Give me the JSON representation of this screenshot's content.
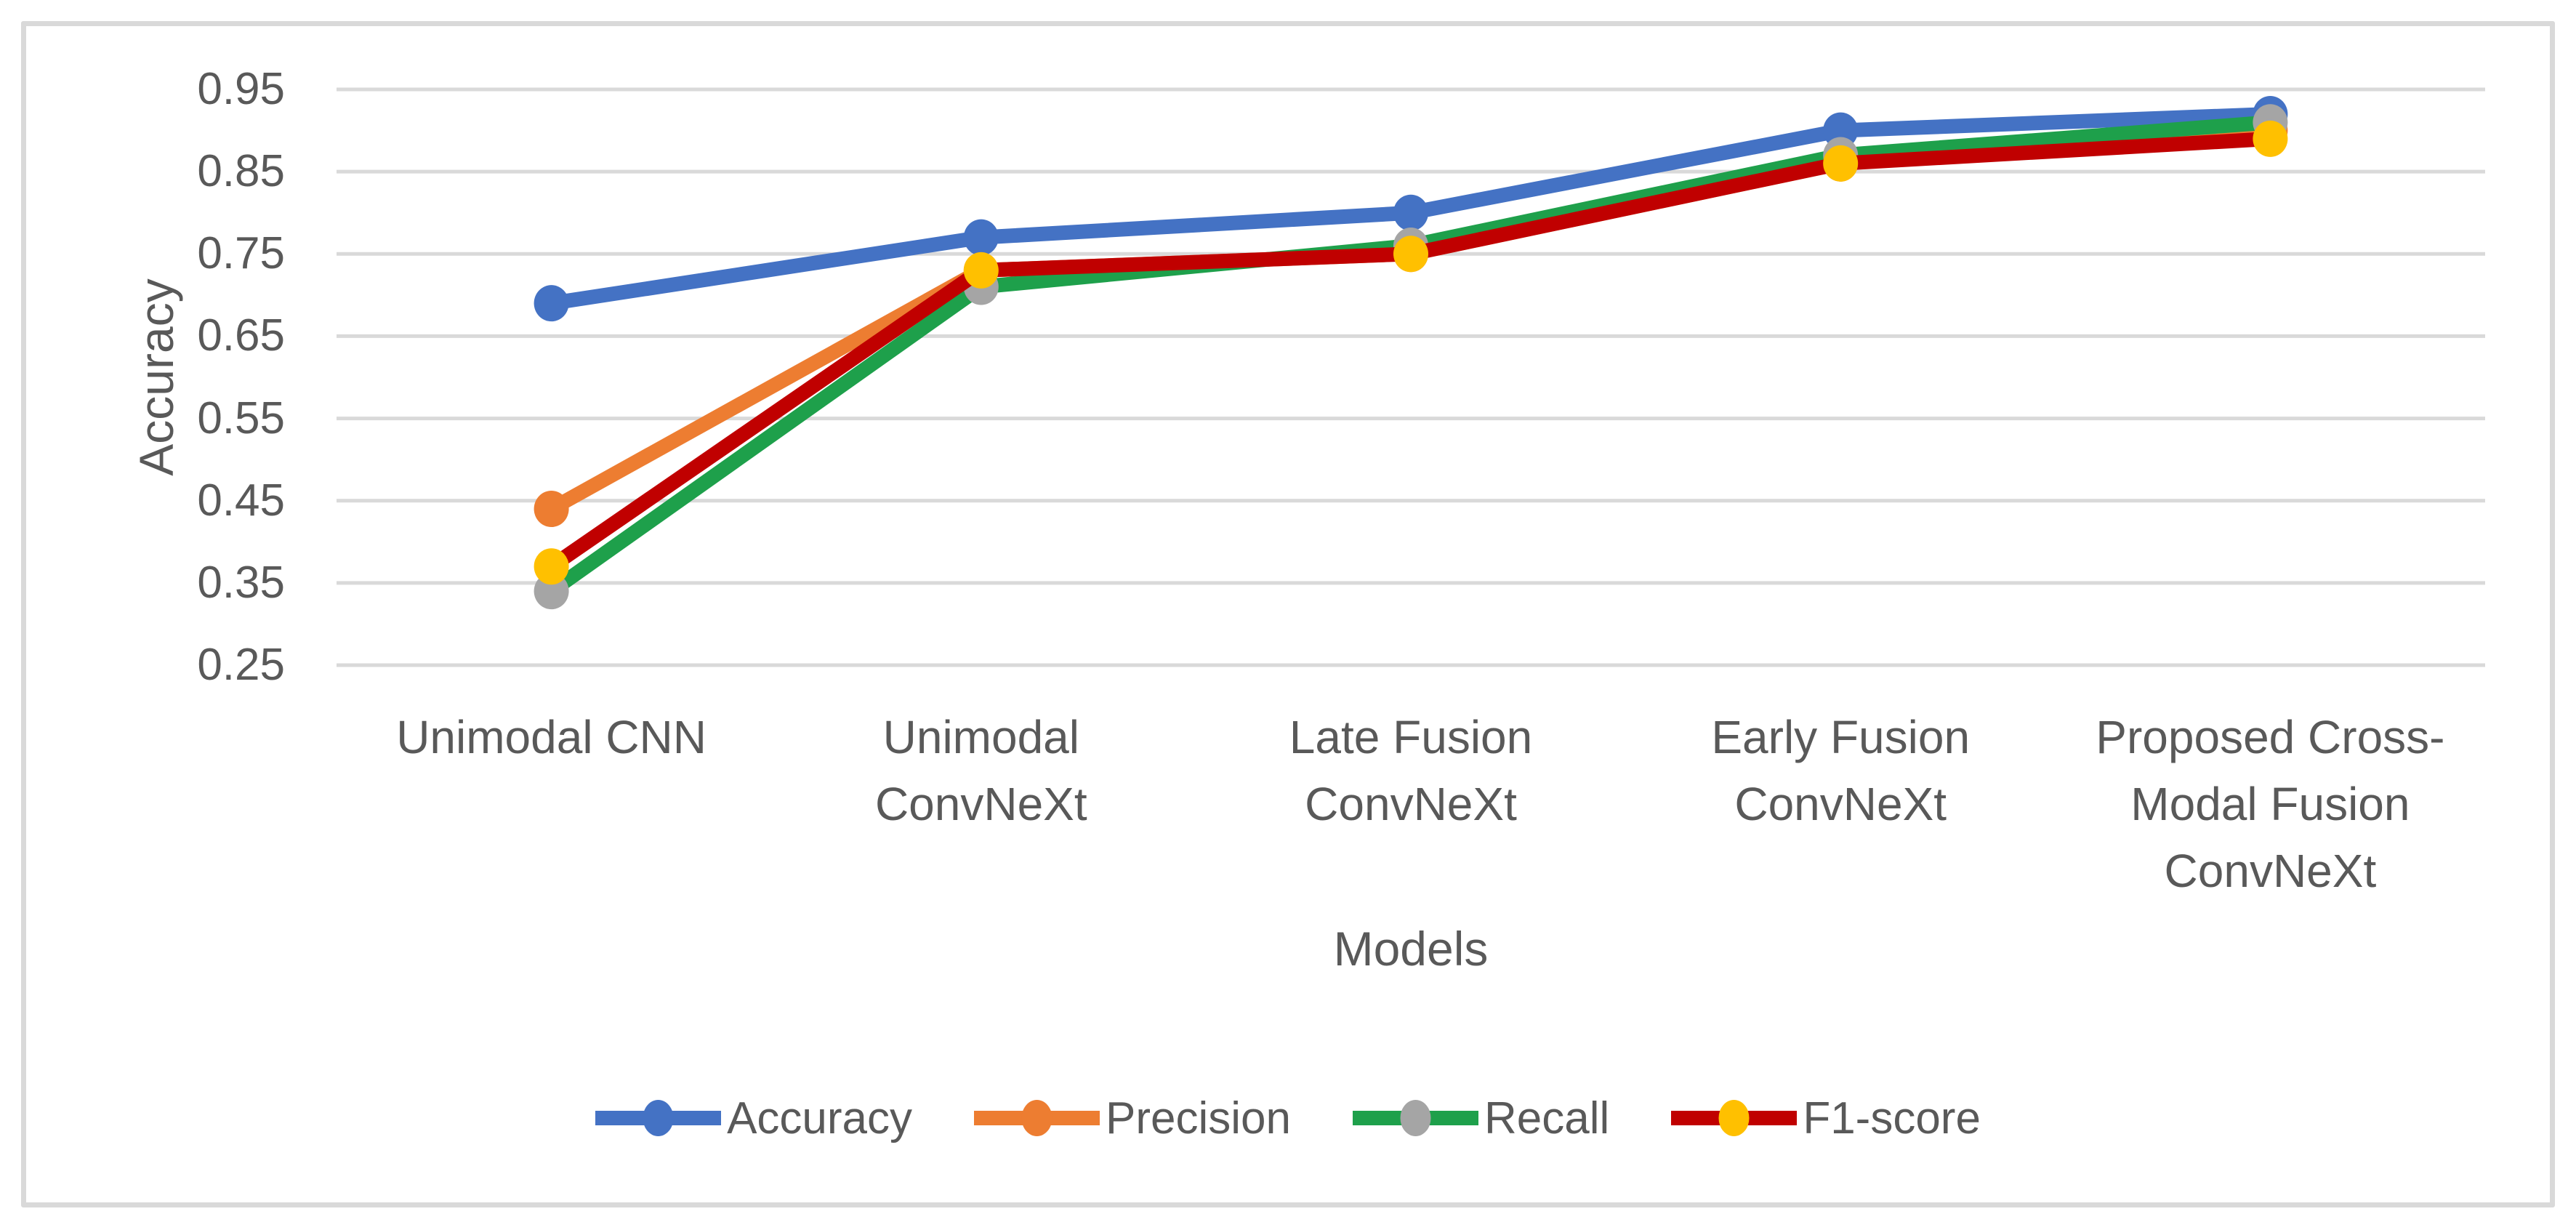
{
  "figure": {
    "background_color": "#FFFFFF",
    "border_color": "#D9D9D9",
    "text_color": "#595959",
    "gridline_color": "#D9D9D9"
  },
  "y_axis": {
    "title": "Accuracy",
    "tick_labels": [
      "0.95",
      "0.85",
      "0.75",
      "0.65",
      "0.55",
      "0.45",
      "0.35",
      "0.25"
    ],
    "tick_values": [
      0.95,
      0.85,
      0.75,
      0.65,
      0.55,
      0.45,
      0.35,
      0.25
    ]
  },
  "x_axis": {
    "title": "Models",
    "tick_label_lines": [
      [
        "Unimodal CNN"
      ],
      [
        "Unimodal",
        "ConvNeXt"
      ],
      [
        "Late Fusion",
        "ConvNeXt"
      ],
      [
        "Early Fusion",
        "ConvNeXt"
      ],
      [
        "Proposed  Cross-",
        "Modal Fusion",
        "ConvNeXt"
      ]
    ]
  },
  "legend": {
    "position": "bottom",
    "entries": [
      {
        "label": "Accuracy",
        "line_color": "#4472C4",
        "marker_color": "#4472C4"
      },
      {
        "label": "Precision",
        "line_color": "#ED7D31",
        "marker_color": "#ED7D31"
      },
      {
        "label": "Recall",
        "line_color": "#1EA04B",
        "marker_color": "#A5A5A5"
      },
      {
        "label": "F1-score",
        "line_color": "#C00000",
        "marker_color": "#FFC000"
      }
    ]
  },
  "chart_data": {
    "type": "line",
    "title": "",
    "xlabel": "Models",
    "ylabel": "Accuracy",
    "categories": [
      "Unimodal CNN",
      "Unimodal ConvNeXt",
      "Late Fusion ConvNeXt",
      "Early Fusion ConvNeXt",
      "Proposed Cross-Modal Fusion ConvNeXt"
    ],
    "series": [
      {
        "name": "Accuracy",
        "line_color": "#4472C4",
        "marker_color": "#4472C4",
        "values": [
          0.69,
          0.77,
          0.8,
          0.9,
          0.92
        ]
      },
      {
        "name": "Precision",
        "line_color": "#ED7D31",
        "marker_color": "#ED7D31",
        "values": [
          0.44,
          0.73,
          0.75,
          0.86,
          0.9
        ]
      },
      {
        "name": "Recall",
        "line_color": "#1EA04B",
        "marker_color": "#A5A5A5",
        "values": [
          0.34,
          0.71,
          0.76,
          0.87,
          0.91
        ]
      },
      {
        "name": "F1-score",
        "line_color": "#C00000",
        "marker_color": "#FFC000",
        "values": [
          0.37,
          0.73,
          0.75,
          0.86,
          0.89
        ]
      }
    ],
    "ylim": [
      0.25,
      0.95
    ],
    "y_tick_step": 0.1,
    "grid": true,
    "legend_position": "bottom"
  }
}
